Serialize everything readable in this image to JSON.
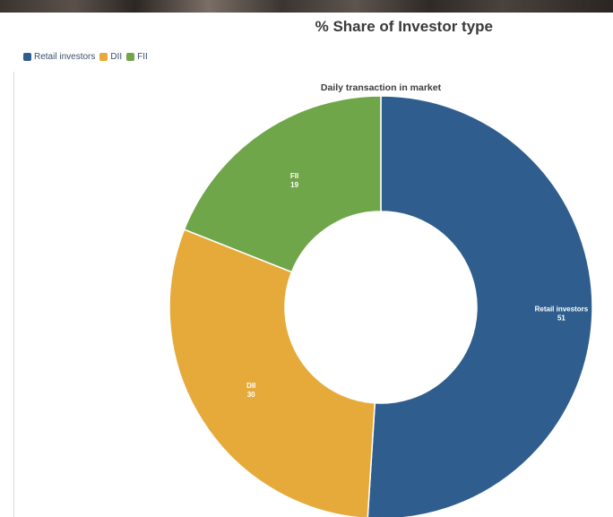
{
  "chart_data": {
    "type": "pie",
    "title": "% Share of Investor type",
    "subtitle": "Daily transaction in market",
    "legend_position": "top-left",
    "series": [
      {
        "name": "Retail investors",
        "label": "Retail investors",
        "value_text": "51",
        "value": 51,
        "color": "#2f5e8e"
      },
      {
        "name": "DII",
        "label": "DII",
        "value_text": "30",
        "value": 30,
        "color": "#e5aa3a"
      },
      {
        "name": "FII",
        "label": "FII",
        "value_text": "19",
        "value": 19,
        "color": "#70a64a"
      }
    ]
  }
}
